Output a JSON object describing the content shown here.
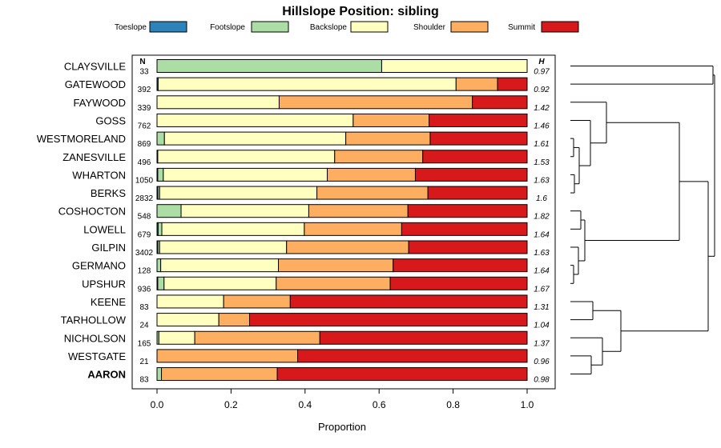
{
  "chart_data": {
    "type": "bar",
    "stacked": true,
    "orientation": "horizontal",
    "title": "Hillslope Position: sibling",
    "xlabel": "Proportion",
    "ylabel": "",
    "xlim": [
      0,
      1
    ],
    "x_ticks": [
      "0.0",
      "0.2",
      "0.4",
      "0.6",
      "0.8",
      "1.0"
    ],
    "n_header": "N",
    "h_header": "H",
    "legend_position": "top",
    "categories": [
      "CLAYSVILLE",
      "GATEWOOD",
      "FAYWOOD",
      "GOSS",
      "WESTMORELAND",
      "ZANESVILLE",
      "WHARTON",
      "BERKS",
      "COSHOCTON",
      "LOWELL",
      "GILPIN",
      "GERMANO",
      "UPSHUR",
      "KEENE",
      "TARHOLLOW",
      "NICHOLSON",
      "WESTGATE",
      "AARON"
    ],
    "bold_category": "AARON",
    "n": [
      "33",
      "392",
      "339",
      "762",
      "869",
      "496",
      "1050",
      "2832",
      "548",
      "679",
      "3402",
      "128",
      "936",
      "83",
      "24",
      "165",
      "21",
      "83"
    ],
    "h": [
      "0.97",
      "0.92",
      "1.42",
      "1.46",
      "1.61",
      "1.53",
      "1.63",
      "1.6",
      "1.82",
      "1.64",
      "1.63",
      "1.64",
      "1.67",
      "1.31",
      "1.04",
      "1.37",
      "0.96",
      "0.98"
    ],
    "series": [
      {
        "name": "Toeslope",
        "color": "#2b83ba",
        "values": [
          0,
          0.003,
          0,
          0,
          0,
          0.002,
          0.002,
          0.002,
          0,
          0.003,
          0.002,
          0,
          0.002,
          0,
          0,
          0,
          0,
          0
        ]
      },
      {
        "name": "Footslope",
        "color": "#abdda4",
        "values": [
          0.607,
          0,
          0,
          0,
          0.02,
          0,
          0.015,
          0.005,
          0.065,
          0.01,
          0.005,
          0.01,
          0.017,
          0,
          0,
          0.005,
          0,
          0.012
        ]
      },
      {
        "name": "Backslope",
        "color": "#ffffbf",
        "values": [
          0.393,
          0.805,
          0.33,
          0.53,
          0.49,
          0.478,
          0.443,
          0.425,
          0.345,
          0.385,
          0.343,
          0.318,
          0.303,
          0.18,
          0.167,
          0.097,
          0,
          0
        ]
      },
      {
        "name": "Shoulder",
        "color": "#fdae61",
        "values": [
          0,
          0.112,
          0.522,
          0.205,
          0.228,
          0.238,
          0.238,
          0.3,
          0.268,
          0.263,
          0.33,
          0.31,
          0.308,
          0.18,
          0.083,
          0.338,
          0.38,
          0.313
        ]
      },
      {
        "name": "Summit",
        "color": "#d7191c",
        "values": [
          0,
          0.08,
          0.148,
          0.265,
          0.262,
          0.282,
          0.302,
          0.268,
          0.322,
          0.339,
          0.32,
          0.362,
          0.37,
          0.64,
          0.75,
          0.56,
          0.62,
          0.675
        ]
      }
    ]
  }
}
